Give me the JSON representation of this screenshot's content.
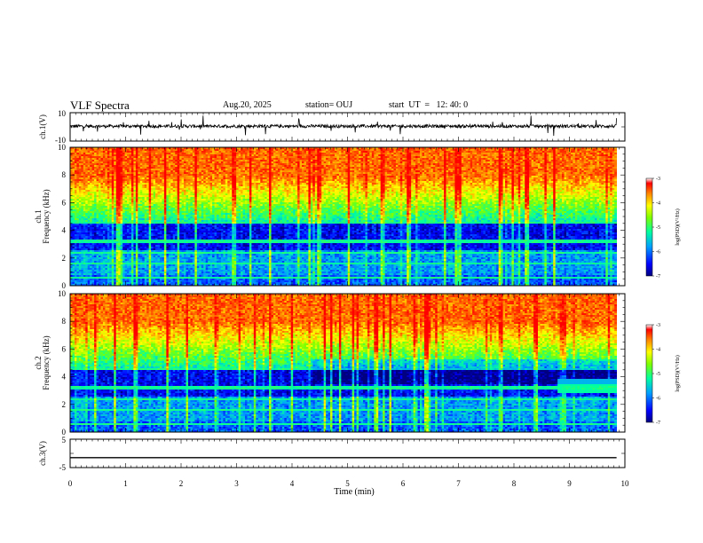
{
  "header": {
    "title": "VLF Spectra",
    "date": "Aug.20, 2025",
    "station": "station= OUJ",
    "start": "start  UT  =   12: 40: 0"
  },
  "chart_data": [
    {
      "type": "line",
      "panel": "ch1_waveform",
      "ylabel": "ch.1(V)",
      "ylim": [
        -10,
        10
      ],
      "ytick_labels": [
        "10",
        "-10"
      ],
      "baseline": 0.5,
      "description_note": ""
    },
    {
      "type": "heatmap",
      "panel": "ch1_spectrogram",
      "ylabel_channel": "ch.1",
      "ylabel": "Frequency (kHz)",
      "ylim": [
        0,
        10
      ],
      "ytick_labels": [
        "0",
        "2",
        "4",
        "6",
        "8",
        "10"
      ],
      "xlim": [
        0,
        9.85
      ],
      "colorbar": {
        "label": "log(PSD)(V²/Hz)",
        "range": [
          -7,
          -3
        ],
        "tick_labels": [
          "-7",
          "-6",
          "-5",
          "-4",
          "-3"
        ]
      }
    },
    {
      "type": "heatmap",
      "panel": "ch2_spectrogram",
      "ylabel_channel": "ch.2",
      "ylabel": "Frequency (kHz)",
      "ylim": [
        0,
        10
      ],
      "ytick_labels": [
        "0",
        "2",
        "4",
        "6",
        "8",
        "10"
      ],
      "xlim": [
        0,
        9.85
      ],
      "colorbar": {
        "label": "log(PSD)(V²/Hz)",
        "range": [
          -7,
          -3
        ],
        "tick_labels": [
          "-7",
          "-6",
          "-5",
          "-4",
          "-3"
        ]
      }
    },
    {
      "type": "line",
      "panel": "ch3_waveform",
      "ylabel": "ch.3(V)",
      "ylim": [
        -5,
        5
      ],
      "ytick_labels": [
        "5",
        "-5"
      ],
      "series": [
        {
          "x": [
            0,
            9.85
          ],
          "y": [
            -1.5,
            -1.5
          ]
        }
      ]
    }
  ],
  "xaxis": {
    "label": "Time (min)",
    "range": [
      0,
      10
    ],
    "tick_labels": [
      "0",
      "1",
      "2",
      "3",
      "4",
      "5",
      "6",
      "7",
      "8",
      "9",
      "10"
    ]
  },
  "colors": {
    "colormap": [
      "#00008b",
      "#0000ff",
      "#00bfff",
      "#00ff80",
      "#ffff00",
      "#ff8000",
      "#ff0000"
    ]
  }
}
